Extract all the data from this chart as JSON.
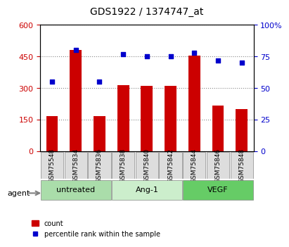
{
  "title": "GDS1922 / 1374747_at",
  "categories": [
    "GSM75548",
    "GSM75834",
    "GSM75836",
    "GSM75838",
    "GSM75840",
    "GSM75842",
    "GSM75844",
    "GSM75846",
    "GSM75848"
  ],
  "counts": [
    165,
    480,
    165,
    315,
    310,
    310,
    455,
    215,
    200
  ],
  "percentiles": [
    55,
    80,
    55,
    77,
    75,
    75,
    78,
    72,
    70
  ],
  "bar_color": "#cc0000",
  "dot_color": "#0000cc",
  "ylim_left": [
    0,
    600
  ],
  "ylim_right": [
    0,
    100
  ],
  "yticks_left": [
    0,
    150,
    300,
    450,
    600
  ],
  "yticks_right": [
    0,
    25,
    50,
    75,
    100
  ],
  "ytick_labels_left": [
    "0",
    "150",
    "300",
    "450",
    "600"
  ],
  "ytick_labels_right": [
    "0",
    "25",
    "50",
    "75",
    "100%"
  ],
  "groups": [
    {
      "label": "untreated",
      "indices": [
        0,
        1,
        2
      ],
      "color": "#aaddaa"
    },
    {
      "label": "Ang-1",
      "indices": [
        3,
        4,
        5
      ],
      "color": "#cceecc"
    },
    {
      "label": "VEGF",
      "indices": [
        6,
        7,
        8
      ],
      "color": "#66cc66"
    }
  ],
  "agent_label": "agent",
  "legend_count_label": "count",
  "legend_pct_label": "percentile rank within the sample",
  "grid_color": "#888888",
  "bg_color": "#ffffff",
  "plot_bg": "#ffffff",
  "tick_label_color_left": "#cc0000",
  "tick_label_color_right": "#0000cc"
}
